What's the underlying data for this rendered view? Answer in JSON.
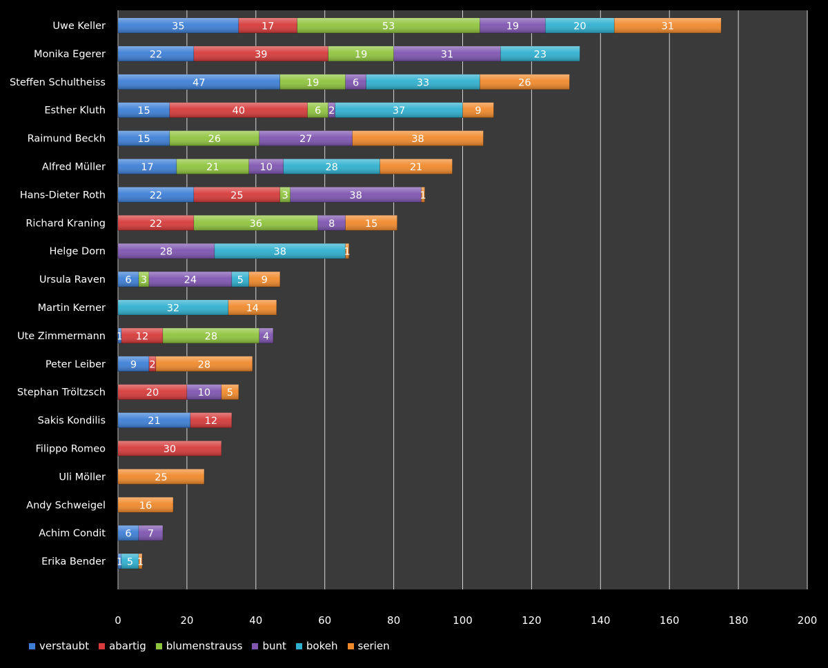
{
  "chart_data": {
    "type": "bar",
    "orientation": "horizontal",
    "stacked": true,
    "title": "",
    "xlabel": "",
    "ylabel": "",
    "xlim": [
      0,
      200
    ],
    "x_ticks": [
      0,
      20,
      40,
      60,
      80,
      100,
      120,
      140,
      160,
      180,
      200
    ],
    "grid": true,
    "legend_position": "bottom-left",
    "categories": [
      "Uwe Keller",
      "Monika Egerer",
      "Steffen Schultheiss",
      "Esther Kluth",
      "Raimund Beckh",
      "Alfred Müller",
      "Hans-Dieter Roth",
      "Richard Kraning",
      "Helge Dorn",
      "Ursula Raven",
      "Martin Kerner",
      "Ute Zimmermann",
      "Peter Leiber",
      "Stephan Tröltzsch",
      "Sakis Kondilis",
      "Filippo Romeo",
      "Uli Möller",
      "Andy Schweigel",
      "Achim Condit",
      "Erika Bender"
    ],
    "series": [
      {
        "name": "verstaubt",
        "color": "#3d7fd6",
        "values": [
          35,
          22,
          47,
          15,
          15,
          17,
          22,
          0,
          0,
          6,
          0,
          1,
          9,
          0,
          21,
          0,
          0,
          0,
          6,
          1
        ]
      },
      {
        "name": "abartig",
        "color": "#d63a3a",
        "values": [
          17,
          39,
          0,
          40,
          0,
          0,
          25,
          22,
          0,
          0,
          0,
          12,
          2,
          20,
          12,
          30,
          0,
          0,
          0,
          0
        ]
      },
      {
        "name": "blumenstrauss",
        "color": "#8fc43e",
        "values": [
          53,
          19,
          19,
          6,
          26,
          21,
          3,
          36,
          0,
          3,
          0,
          28,
          0,
          0,
          0,
          0,
          0,
          0,
          0,
          0
        ]
      },
      {
        "name": "bunt",
        "color": "#7e55b0",
        "values": [
          19,
          31,
          6,
          2,
          27,
          10,
          38,
          8,
          28,
          24,
          0,
          4,
          0,
          10,
          0,
          0,
          0,
          0,
          7,
          0
        ]
      },
      {
        "name": "bokeh",
        "color": "#2fb0cf",
        "values": [
          20,
          23,
          33,
          37,
          0,
          28,
          0,
          0,
          38,
          5,
          32,
          0,
          0,
          0,
          0,
          0,
          0,
          0,
          0,
          5
        ]
      },
      {
        "name": "serien",
        "color": "#f0892b",
        "values": [
          31,
          0,
          26,
          9,
          38,
          21,
          1,
          15,
          1,
          9,
          14,
          0,
          28,
          5,
          0,
          0,
          25,
          16,
          0,
          1
        ]
      }
    ]
  },
  "colors": {
    "background": "#000000",
    "plot_area": "#3a3a3a",
    "gridline": "#d8d8d8",
    "text": "#ffffff"
  }
}
